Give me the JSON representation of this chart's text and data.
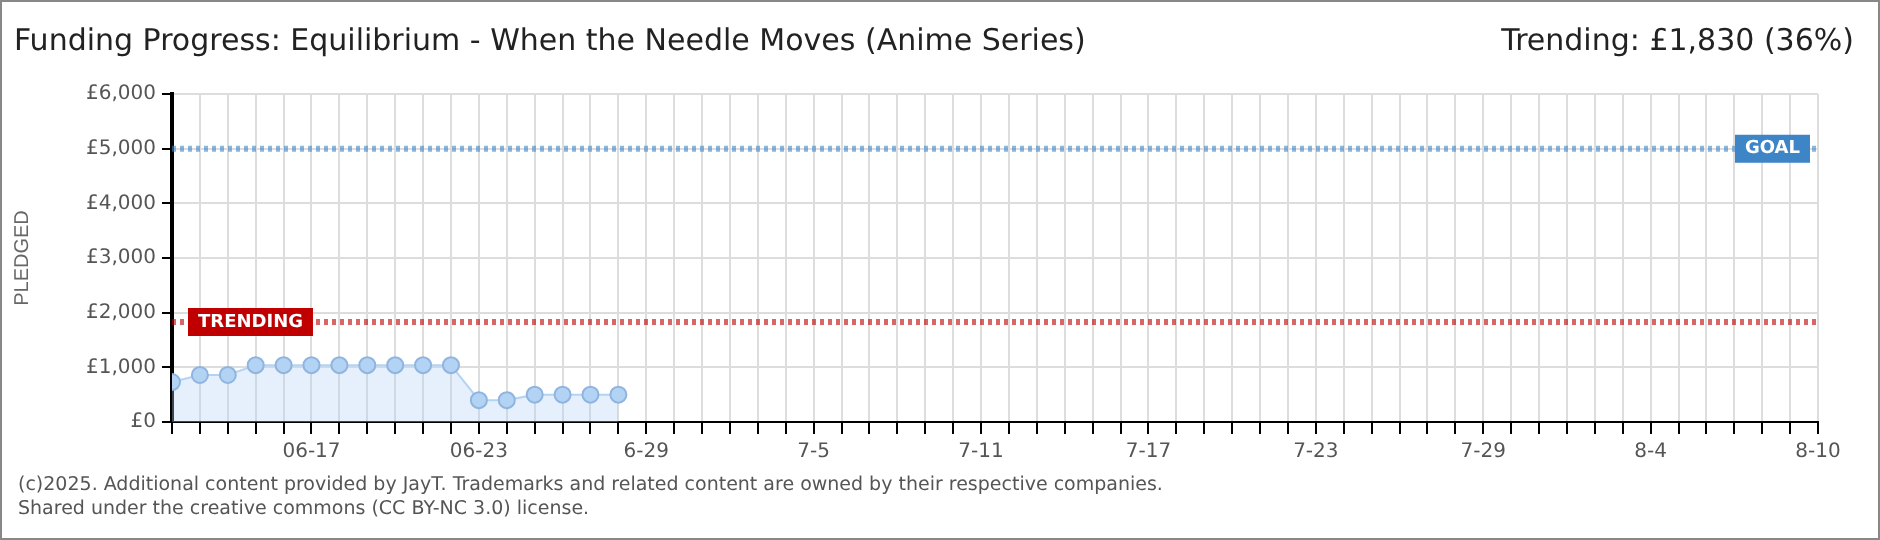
{
  "chart_data": {
    "type": "area",
    "title": "Funding Progress: Equilibrium - When the Needle Moves (Anime Series)",
    "subtitle": "Trending:  £1,830 (36%)",
    "ylabel": "PLEDGED",
    "x": [
      "--06-12",
      "--06-13",
      "--06-14",
      "--06-15",
      "--06-16",
      "--06-17",
      "--06-18",
      "--06-19",
      "--06-20",
      "--06-21",
      "--06-22",
      "--06-23",
      "--06-24",
      "--06-25",
      "--06-26",
      "--06-27",
      "--06-28"
    ],
    "series": [
      {
        "color": "#b3d3f5",
        "values": [
          730,
          860,
          860,
          1040,
          1040,
          1040,
          1040,
          1040,
          1040,
          1040,
          1040,
          400,
          400,
          500,
          500,
          500,
          500
        ]
      }
    ],
    "xlim": [
      "--06-12",
      "--08-10"
    ],
    "xticks": [
      {
        "value": "--06-12",
        "label": null
      },
      {
        "value": "--06-13",
        "label": null
      },
      {
        "value": "--06-14",
        "label": null
      },
      {
        "value": "--06-15",
        "label": null
      },
      {
        "value": "--06-16",
        "label": null
      },
      {
        "value": "--06-17",
        "label": "06-17"
      },
      {
        "value": "--06-18",
        "label": null
      },
      {
        "value": "--06-19",
        "label": null
      },
      {
        "value": "--06-20",
        "label": null
      },
      {
        "value": "--06-21",
        "label": null
      },
      {
        "value": "--06-22",
        "label": null
      },
      {
        "value": "--06-23",
        "label": "06-23"
      },
      {
        "value": "--06-24",
        "label": null
      },
      {
        "value": "--06-25",
        "label": null
      },
      {
        "value": "--06-26",
        "label": null
      },
      {
        "value": "--06-27",
        "label": null
      },
      {
        "value": "--06-28",
        "label": null
      },
      {
        "value": "--06-29",
        "label": "6-29"
      },
      {
        "value": "--06-30",
        "label": null
      },
      {
        "value": "--07-01",
        "label": null
      },
      {
        "value": "--07-02",
        "label": null
      },
      {
        "value": "--07-03",
        "label": null
      },
      {
        "value": "--07-04",
        "label": null
      },
      {
        "value": "--07-05",
        "label": "7-5"
      },
      {
        "value": "--07-06",
        "label": null
      },
      {
        "value": "--07-07",
        "label": null
      },
      {
        "value": "--07-08",
        "label": null
      },
      {
        "value": "--07-09",
        "label": null
      },
      {
        "value": "--07-10",
        "label": null
      },
      {
        "value": "--07-11",
        "label": "7-11"
      },
      {
        "value": "--07-12",
        "label": null
      },
      {
        "value": "--07-13",
        "label": null
      },
      {
        "value": "--07-14",
        "label": null
      },
      {
        "value": "--07-15",
        "label": null
      },
      {
        "value": "--07-16",
        "label": null
      },
      {
        "value": "--07-17",
        "label": "7-17"
      },
      {
        "value": "--07-18",
        "label": null
      },
      {
        "value": "--07-19",
        "label": null
      },
      {
        "value": "--07-20",
        "label": null
      },
      {
        "value": "--07-21",
        "label": null
      },
      {
        "value": "--07-22",
        "label": null
      },
      {
        "value": "--07-23",
        "label": "7-23"
      },
      {
        "value": "--07-24",
        "label": null
      },
      {
        "value": "--07-25",
        "label": null
      },
      {
        "value": "--07-26",
        "label": null
      },
      {
        "value": "--07-27",
        "label": null
      },
      {
        "value": "--07-28",
        "label": null
      },
      {
        "value": "--07-29",
        "label": "7-29"
      },
      {
        "value": "--07-30",
        "label": null
      },
      {
        "value": "--07-31",
        "label": null
      },
      {
        "value": "--08-01",
        "label": null
      },
      {
        "value": "--08-02",
        "label": null
      },
      {
        "value": "--08-03",
        "label": null
      },
      {
        "value": "--08-04",
        "label": "8-4"
      },
      {
        "value": "--08-05",
        "label": null
      },
      {
        "value": "--08-06",
        "label": null
      },
      {
        "value": "--08-07",
        "label": null
      },
      {
        "value": "--08-08",
        "label": null
      },
      {
        "value": "--08-09",
        "label": null
      },
      {
        "value": "--08-10",
        "label": "8-10"
      }
    ],
    "ylim": [
      0,
      6000
    ],
    "yticks": [
      {
        "value": 0,
        "label": "£0"
      },
      {
        "value": 1000,
        "label": "£1,000"
      },
      {
        "value": 2000,
        "label": "£2,000"
      },
      {
        "value": 3000,
        "label": "£3,000"
      },
      {
        "value": 4000,
        "label": "£4,000"
      },
      {
        "value": 5000,
        "label": "£5,000"
      },
      {
        "value": 6000,
        "label": "£6,000"
      }
    ],
    "ref_lines": [
      {
        "axis": "y",
        "value": 5000,
        "label": "GOAL",
        "color": "#3d85c6",
        "line_style": "dotted"
      },
      {
        "axis": "y",
        "value": 1830,
        "label": "TRENDING",
        "color": "#c00000",
        "line_style": "dotted"
      }
    ],
    "grid": true,
    "legend": false,
    "marker": "circle",
    "line_style": "solid",
    "annotations": [
      "(c)2025. Additional content provided by JayT. Trademarks and related content are owned by their respective companies.",
      "Shared under the creative commons (CC BY-NC 3.0) license."
    ]
  }
}
